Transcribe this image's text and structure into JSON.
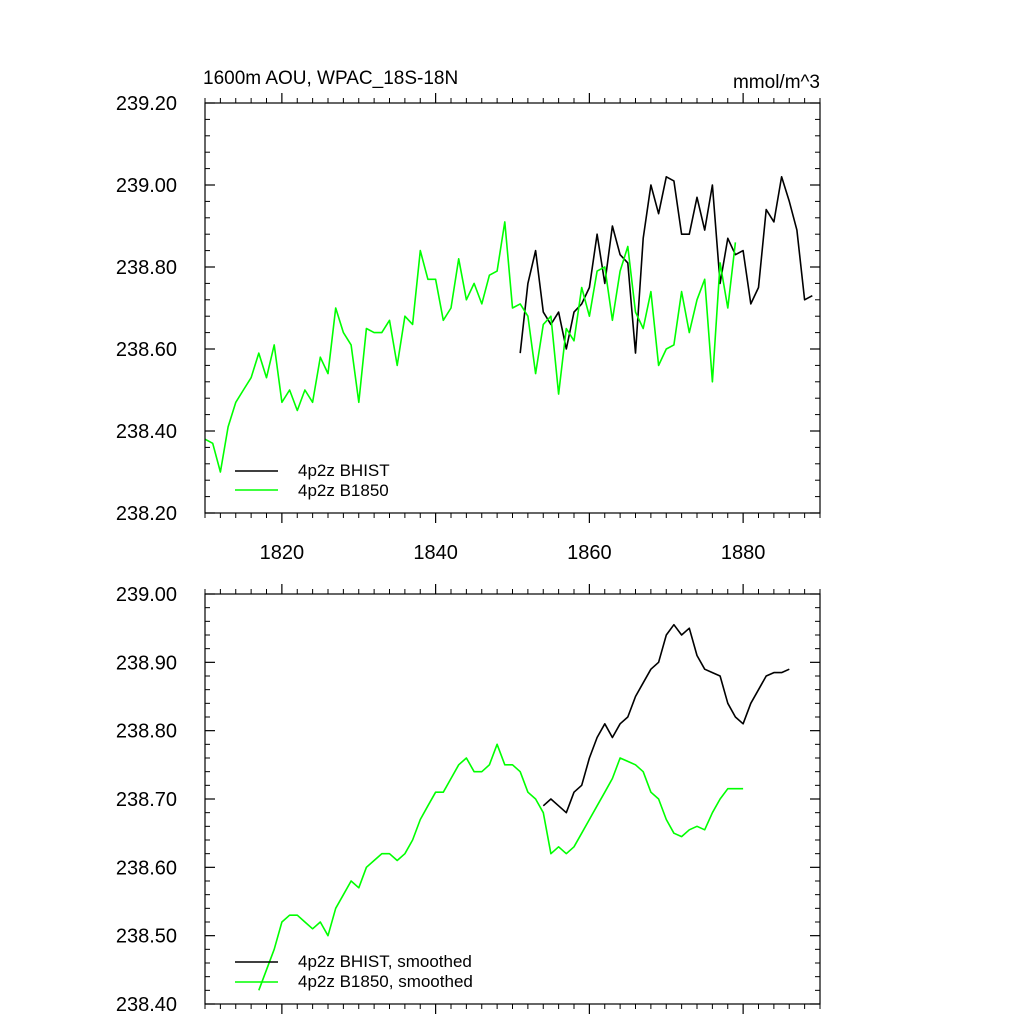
{
  "chart_data": [
    {
      "type": "line",
      "title": "1600m AOU, WPAC_18S-18N",
      "units": "mmol/m^3",
      "xlabel": "",
      "ylabel": "",
      "xlim": [
        1810,
        1890
      ],
      "ylim": [
        238.2,
        239.2
      ],
      "xticks": [
        1820,
        1840,
        1860,
        1880
      ],
      "yticks": [
        "238.20",
        "238.40",
        "238.60",
        "238.80",
        "239.00",
        "239.20"
      ],
      "grid": false,
      "legend_position": "bottom-left",
      "series": [
        {
          "name": "4p2z BHIST",
          "color": "#000000",
          "x": [
            1851,
            1852,
            1853,
            1854,
            1855,
            1856,
            1857,
            1858,
            1859,
            1860,
            1861,
            1862,
            1863,
            1864,
            1865,
            1866,
            1867,
            1868,
            1869,
            1870,
            1871,
            1872,
            1873,
            1874,
            1875,
            1876,
            1877,
            1878,
            1879,
            1880,
            1881,
            1882,
            1883,
            1884,
            1885,
            1886,
            1887,
            1888,
            1889
          ],
          "values": [
            238.59,
            238.76,
            238.84,
            238.69,
            238.66,
            238.69,
            238.6,
            238.69,
            238.71,
            238.75,
            238.88,
            238.76,
            238.9,
            238.83,
            238.81,
            238.59,
            238.87,
            239.0,
            238.93,
            239.02,
            239.01,
            238.88,
            238.88,
            238.97,
            238.89,
            239.0,
            238.76,
            238.87,
            238.83,
            238.84,
            238.71,
            238.75,
            238.94,
            238.91,
            239.02,
            238.96,
            238.89,
            238.72,
            238.73
          ]
        },
        {
          "name": "4p2z B1850",
          "color": "#00ff00",
          "x": [
            1810,
            1811,
            1812,
            1813,
            1814,
            1815,
            1816,
            1817,
            1818,
            1819,
            1820,
            1821,
            1822,
            1823,
            1824,
            1825,
            1826,
            1827,
            1828,
            1829,
            1830,
            1831,
            1832,
            1833,
            1834,
            1835,
            1836,
            1837,
            1838,
            1839,
            1840,
            1841,
            1842,
            1843,
            1844,
            1845,
            1846,
            1847,
            1848,
            1849,
            1850,
            1851,
            1852,
            1853,
            1854,
            1855,
            1856,
            1857,
            1858,
            1859,
            1860,
            1861,
            1862,
            1863,
            1864,
            1865,
            1866,
            1867,
            1868,
            1869,
            1870,
            1871,
            1872,
            1873,
            1874,
            1875,
            1876,
            1877,
            1878,
            1879
          ],
          "values": [
            238.38,
            238.37,
            238.3,
            238.41,
            238.47,
            238.5,
            238.53,
            238.59,
            238.53,
            238.61,
            238.47,
            238.5,
            238.45,
            238.5,
            238.47,
            238.58,
            238.54,
            238.7,
            238.64,
            238.61,
            238.47,
            238.65,
            238.64,
            238.64,
            238.67,
            238.56,
            238.68,
            238.66,
            238.84,
            238.77,
            238.77,
            238.67,
            238.7,
            238.82,
            238.72,
            238.76,
            238.71,
            238.78,
            238.79,
            238.91,
            238.7,
            238.71,
            238.68,
            238.54,
            238.66,
            238.68,
            238.49,
            238.65,
            238.62,
            238.75,
            238.68,
            238.79,
            238.8,
            238.67,
            238.79,
            238.85,
            238.69,
            238.65,
            238.74,
            238.56,
            238.6,
            238.61,
            238.74,
            238.64,
            238.72,
            238.77,
            238.52,
            238.81,
            238.7,
            238.86
          ]
        }
      ]
    },
    {
      "type": "line",
      "title": "",
      "xlabel": "",
      "ylabel": "",
      "xlim": [
        1810,
        1890
      ],
      "ylim": [
        238.4,
        239.0
      ],
      "xticks": [
        1820,
        1840,
        1860,
        1880
      ],
      "yticks": [
        "238.40",
        "238.50",
        "238.60",
        "238.70",
        "238.80",
        "238.90",
        "239.00"
      ],
      "grid": false,
      "legend_position": "bottom-left",
      "series": [
        {
          "name": "4p2z BHIST, smoothed",
          "color": "#000000",
          "x": [
            1854,
            1855,
            1856,
            1857,
            1858,
            1859,
            1860,
            1861,
            1862,
            1863,
            1864,
            1865,
            1866,
            1867,
            1868,
            1869,
            1870,
            1871,
            1872,
            1873,
            1874,
            1875,
            1876,
            1877,
            1878,
            1879,
            1880,
            1881,
            1882,
            1883,
            1884,
            1885,
            1886
          ],
          "values": [
            238.69,
            238.7,
            238.69,
            238.68,
            238.71,
            238.72,
            238.76,
            238.79,
            238.81,
            238.79,
            238.81,
            238.82,
            238.85,
            238.87,
            238.89,
            238.9,
            238.94,
            238.955,
            238.94,
            238.95,
            238.91,
            238.89,
            238.885,
            238.88,
            238.84,
            238.82,
            238.81,
            238.84,
            238.86,
            238.88,
            238.885,
            238.885,
            238.89
          ]
        },
        {
          "name": "4p2z B1850, smoothed",
          "color": "#00ff00",
          "x": [
            1817,
            1818,
            1819,
            1820,
            1821,
            1822,
            1823,
            1824,
            1825,
            1826,
            1827,
            1828,
            1829,
            1830,
            1831,
            1832,
            1833,
            1834,
            1835,
            1836,
            1837,
            1838,
            1839,
            1840,
            1841,
            1842,
            1843,
            1844,
            1845,
            1846,
            1847,
            1848,
            1849,
            1850,
            1851,
            1852,
            1853,
            1854,
            1855,
            1856,
            1857,
            1858,
            1859,
            1860,
            1861,
            1862,
            1863,
            1864,
            1865,
            1866,
            1867,
            1868,
            1869,
            1870,
            1871,
            1872,
            1873,
            1874,
            1875,
            1876,
            1877,
            1878,
            1879,
            1880
          ],
          "values": [
            238.42,
            238.45,
            238.48,
            238.52,
            238.53,
            238.53,
            238.52,
            238.51,
            238.52,
            238.5,
            238.54,
            238.56,
            238.58,
            238.57,
            238.6,
            238.61,
            238.62,
            238.62,
            238.61,
            238.62,
            238.64,
            238.67,
            238.69,
            238.71,
            238.71,
            238.73,
            238.75,
            238.76,
            238.74,
            238.74,
            238.75,
            238.78,
            238.75,
            238.75,
            238.74,
            238.71,
            238.7,
            238.68,
            238.62,
            238.63,
            238.62,
            238.63,
            238.65,
            238.67,
            238.69,
            238.71,
            238.73,
            238.76,
            238.755,
            238.75,
            238.74,
            238.71,
            238.7,
            238.67,
            238.65,
            238.645,
            238.655,
            238.66,
            238.655,
            238.68,
            238.7,
            238.715,
            238.715,
            238.715
          ]
        }
      ]
    }
  ]
}
